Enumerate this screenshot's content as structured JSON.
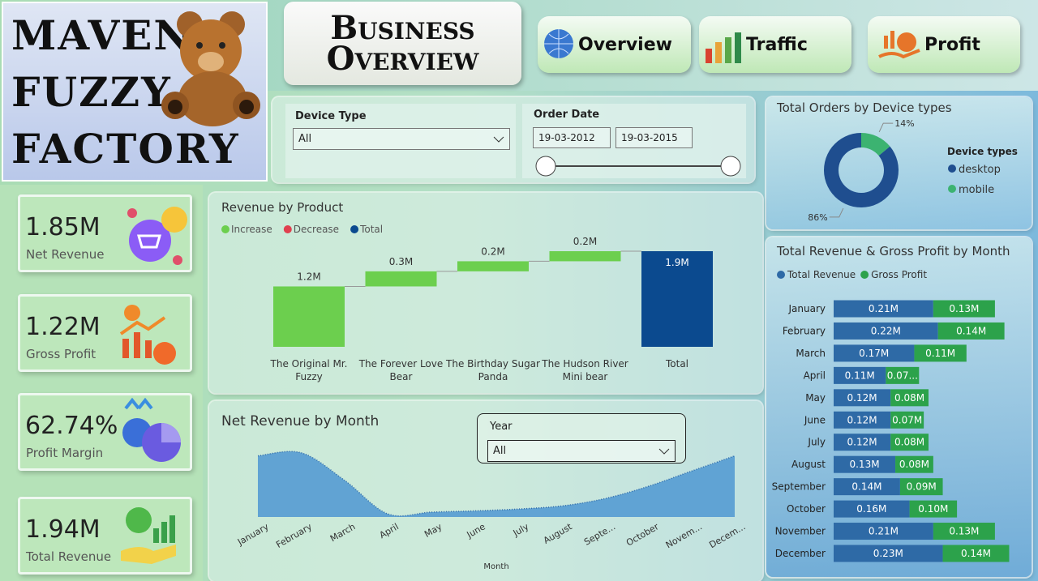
{
  "header": {
    "brand": [
      "MAVEN",
      "FUZZY",
      "FACTORY"
    ],
    "title": "Business Overview",
    "nav": [
      "Overview",
      "Traffic",
      "Profit"
    ]
  },
  "filters": {
    "device_type": {
      "label": "Device Type",
      "value": "All"
    },
    "order_date": {
      "label": "Order Date",
      "start": "19-03-2012",
      "end": "19-03-2015"
    },
    "year": {
      "label": "Year",
      "value": "All"
    }
  },
  "kpis": [
    {
      "value": "1.85M",
      "label": "Net Revenue"
    },
    {
      "value": "1.22M",
      "label": "Gross Profit"
    },
    {
      "value": "62.74%",
      "label": "Profit Margin"
    },
    {
      "value": "1.94M",
      "label": "Total Revenue"
    }
  ],
  "chart_data": [
    {
      "type": "donut",
      "title": "Total Orders by Device types",
      "legend_title": "Device types",
      "categories": [
        "desktop",
        "mobile"
      ],
      "values": [
        86,
        14
      ],
      "value_labels": [
        "86%",
        "14%"
      ],
      "colors": [
        "#1f4e8f",
        "#3cb371"
      ]
    },
    {
      "type": "waterfall",
      "title": "Revenue by Product",
      "legend": [
        {
          "name": "Increase",
          "color": "#6ccf4e"
        },
        {
          "name": "Decrease",
          "color": "#e0404f"
        },
        {
          "name": "Total",
          "color": "#0b4a8f"
        }
      ],
      "categories": [
        "The Original Mr. Fuzzy",
        "The Forever Love Bear",
        "The Birthday Sugar Panda",
        "The Hudson River Mini bear",
        "Total"
      ],
      "values": [
        1.2,
        0.3,
        0.2,
        0.2,
        1.9
      ],
      "value_labels": [
        "1.2M",
        "0.3M",
        "0.2M",
        "0.2M",
        "1.9M"
      ]
    },
    {
      "type": "area",
      "title": "Net Revenue by Month",
      "x_label": "Month",
      "categories": [
        "January",
        "February",
        "March",
        "April",
        "May",
        "June",
        "July",
        "August",
        "Septe...",
        "October",
        "Novem...",
        "Decem..."
      ],
      "values": [
        0.2,
        0.205,
        0.16,
        0.105,
        0.108,
        0.11,
        0.113,
        0.118,
        0.13,
        0.15,
        0.175,
        0.2
      ],
      "ylim": [
        0.1,
        0.21
      ],
      "color": "#5b9fd3"
    },
    {
      "type": "bar",
      "orientation": "horizontal",
      "stacked": true,
      "title": "Total Revenue & Gross Profit by Month",
      "categories": [
        "January",
        "February",
        "March",
        "April",
        "May",
        "June",
        "July",
        "August",
        "September",
        "October",
        "November",
        "December"
      ],
      "xlim": [
        0,
        0.4
      ],
      "series": [
        {
          "name": "Total Revenue",
          "color": "#2e6aa6",
          "values": [
            0.21,
            0.22,
            0.17,
            0.11,
            0.12,
            0.12,
            0.12,
            0.13,
            0.14,
            0.16,
            0.21,
            0.23
          ],
          "value_labels": [
            "0.21M",
            "0.22M",
            "0.17M",
            "0.11M",
            "0.12M",
            "0.12M",
            "0.12M",
            "0.13M",
            "0.14M",
            "0.16M",
            "0.21M",
            "0.23M"
          ]
        },
        {
          "name": "Gross Profit",
          "color": "#2ca24b",
          "values": [
            0.13,
            0.14,
            0.11,
            0.07,
            0.08,
            0.07,
            0.08,
            0.08,
            0.09,
            0.1,
            0.13,
            0.14
          ],
          "value_labels": [
            "0.13M",
            "0.14M",
            "0.11M",
            "0.07...",
            "0.08M",
            "0.07M",
            "0.08M",
            "0.08M",
            "0.09M",
            "0.10M",
            "0.13M",
            "0.14M"
          ]
        }
      ]
    }
  ]
}
